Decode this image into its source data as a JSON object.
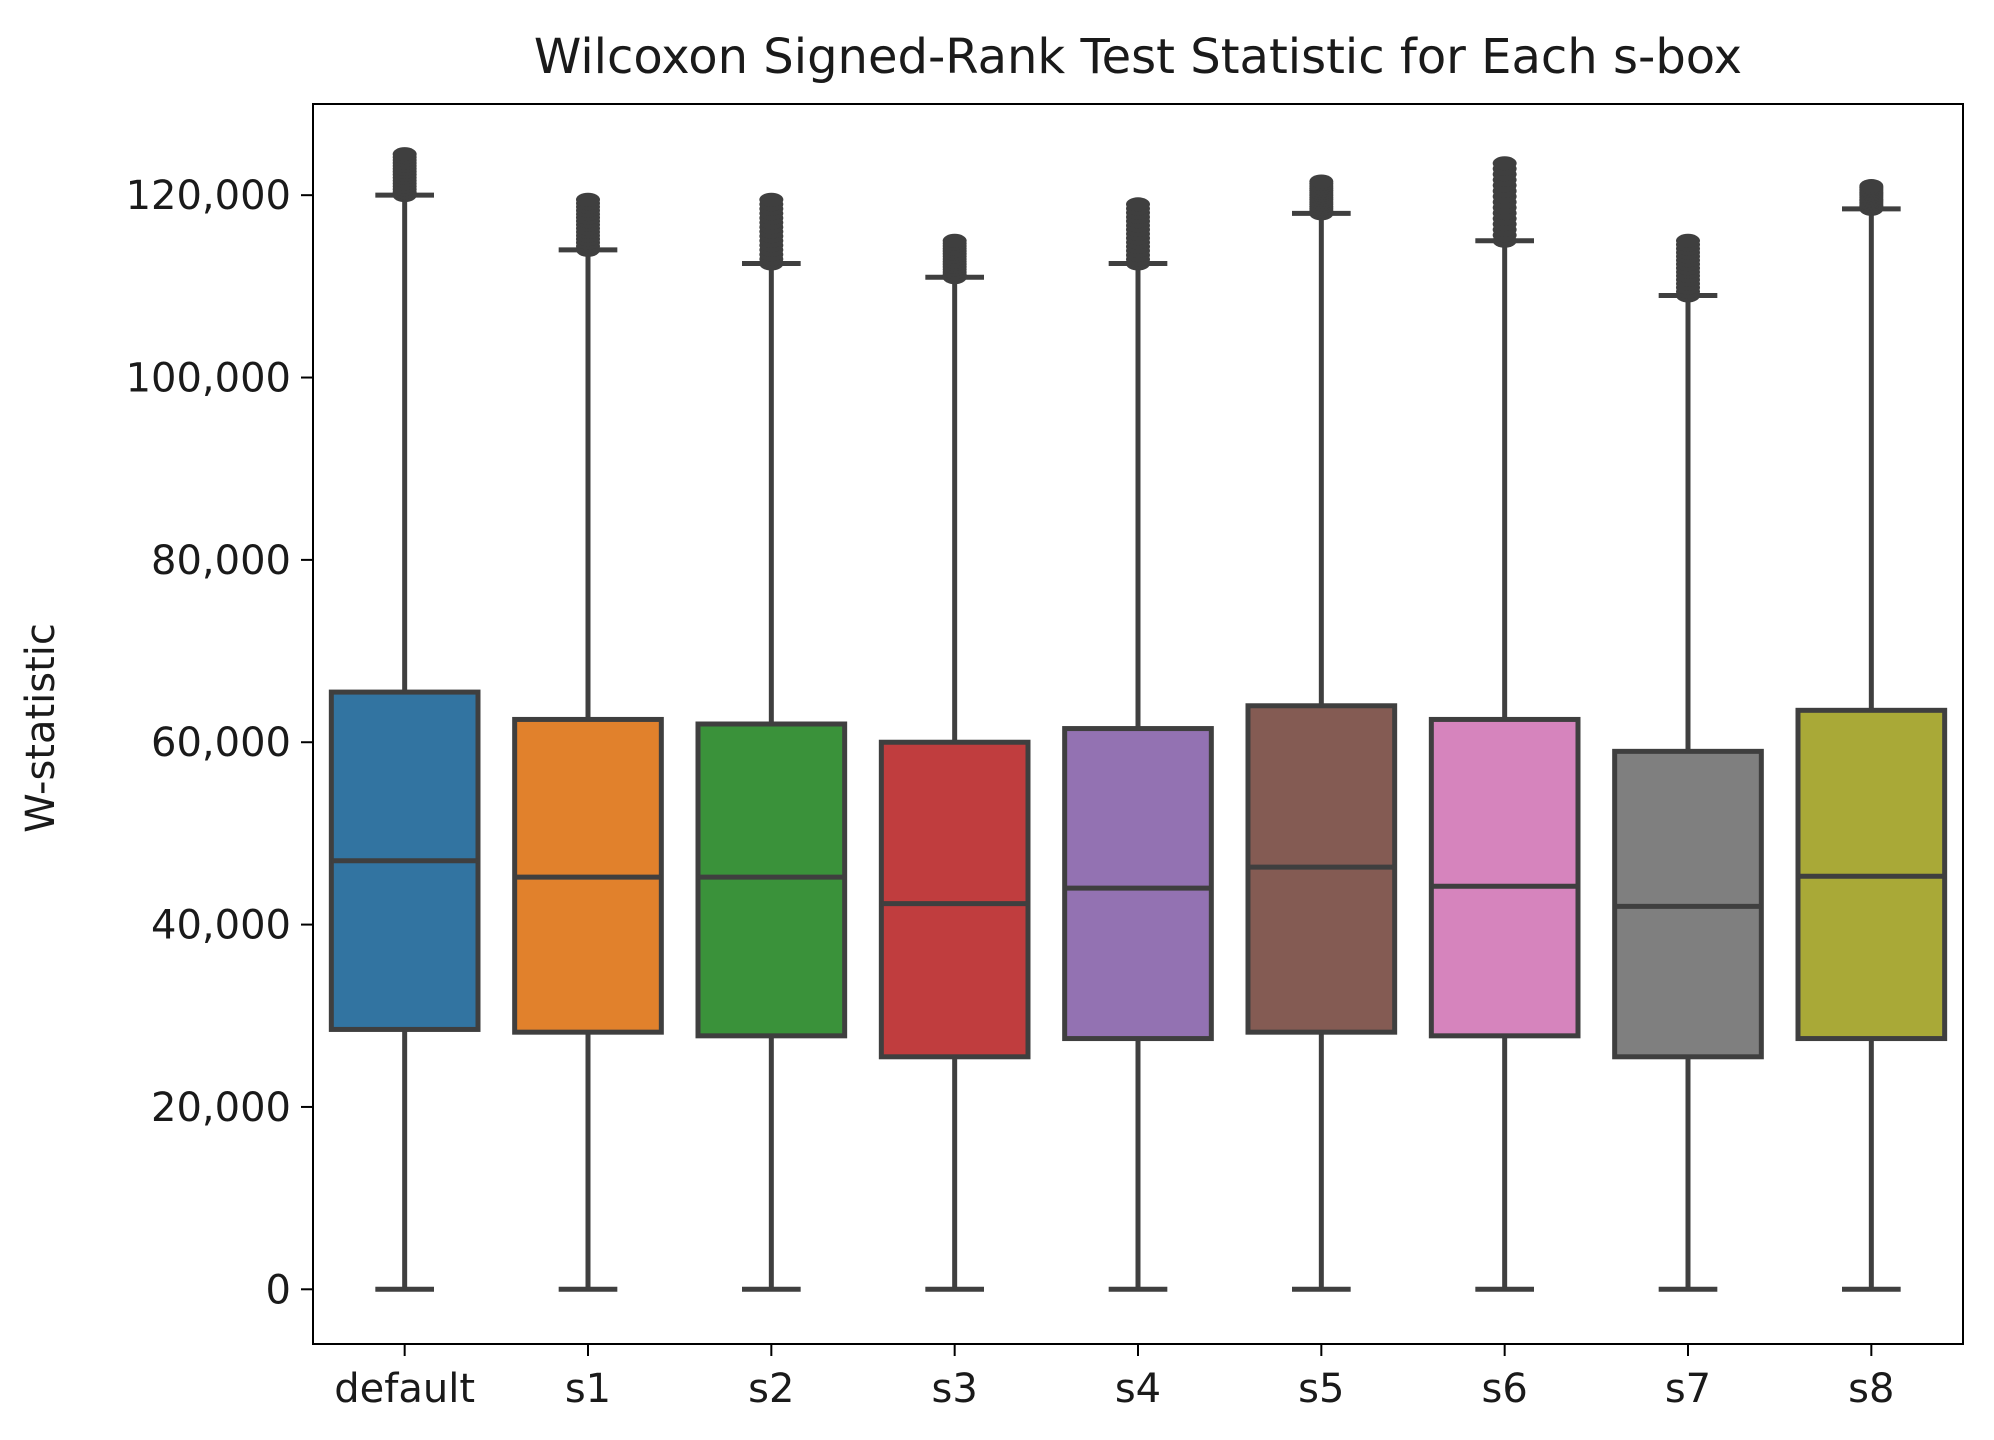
{
  "chart_data": {
    "type": "box",
    "title": "Wilcoxon Signed-Rank Test Statistic for Each s-box",
    "xlabel": "",
    "ylabel": "W-statistic",
    "ylim": [
      -6000,
      130000
    ],
    "yticks": [
      0,
      20000,
      40000,
      60000,
      80000,
      100000,
      120000
    ],
    "ytick_labels": [
      "0",
      "20,000",
      "40,000",
      "60,000",
      "80,000",
      "100,000",
      "120,000"
    ],
    "grid": false,
    "categories": [
      "default",
      "s1",
      "s2",
      "s3",
      "s4",
      "s5",
      "s6",
      "s7",
      "s8"
    ],
    "boxes": [
      {
        "category": "default",
        "whisker_low": 0,
        "q1": 28500,
        "median": 47000,
        "q3": 65500,
        "whisker_high": 120000,
        "outlier_max": 124500,
        "color": "#3274a1"
      },
      {
        "category": "s1",
        "whisker_low": 0,
        "q1": 28200,
        "median": 45200,
        "q3": 62500,
        "whisker_high": 114000,
        "outlier_max": 119500,
        "color": "#e1812c"
      },
      {
        "category": "s2",
        "whisker_low": 0,
        "q1": 27800,
        "median": 45200,
        "q3": 62000,
        "whisker_high": 112500,
        "outlier_max": 119500,
        "color": "#3a923a"
      },
      {
        "category": "s3",
        "whisker_low": 0,
        "q1": 25500,
        "median": 42300,
        "q3": 60000,
        "whisker_high": 111000,
        "outlier_max": 115000,
        "color": "#c03d3e"
      },
      {
        "category": "s4",
        "whisker_low": 0,
        "q1": 27500,
        "median": 44000,
        "q3": 61500,
        "whisker_high": 112500,
        "outlier_max": 119000,
        "color": "#9372b2"
      },
      {
        "category": "s5",
        "whisker_low": 0,
        "q1": 28200,
        "median": 46300,
        "q3": 64000,
        "whisker_high": 118000,
        "outlier_max": 121500,
        "color": "#845b53"
      },
      {
        "category": "s6",
        "whisker_low": 0,
        "q1": 27800,
        "median": 44200,
        "q3": 62500,
        "whisker_high": 115000,
        "outlier_max": 123500,
        "color": "#d684bd"
      },
      {
        "category": "s7",
        "whisker_low": 0,
        "q1": 25500,
        "median": 42000,
        "q3": 59000,
        "whisker_high": 109000,
        "outlier_max": 115000,
        "color": "#7f7f7f"
      },
      {
        "category": "s8",
        "whisker_low": 0,
        "q1": 27500,
        "median": 45300,
        "q3": 63500,
        "whisker_high": 118500,
        "outlier_max": 121000,
        "color": "#a9a937"
      }
    ],
    "line_color": "#3f3f3f"
  }
}
